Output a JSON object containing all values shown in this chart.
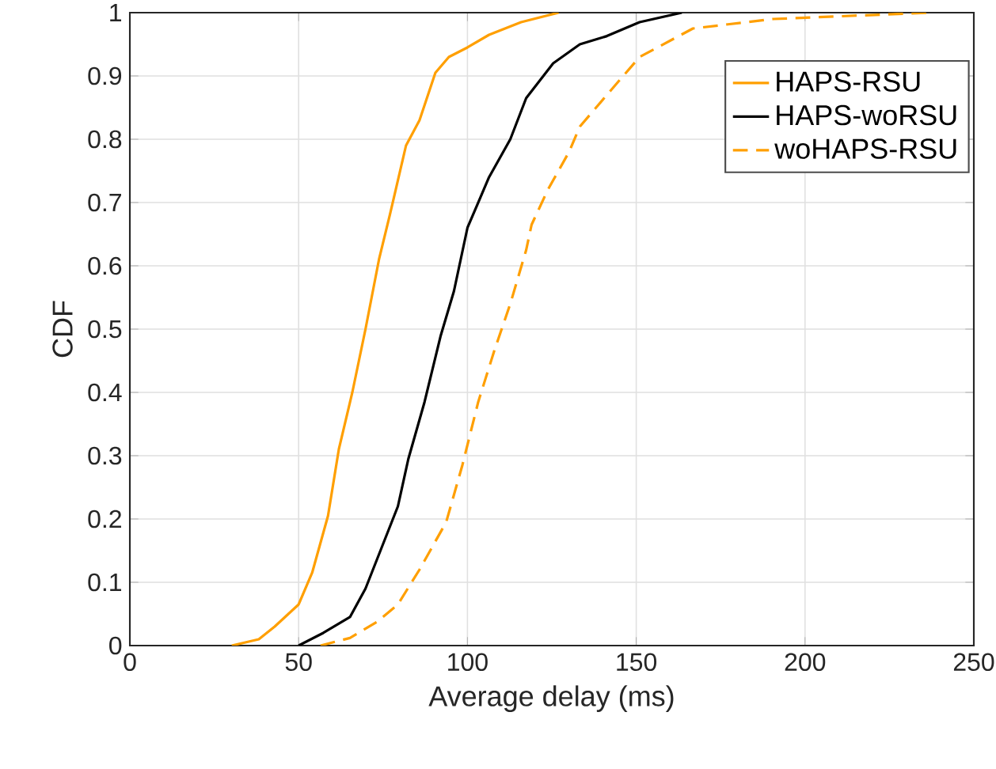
{
  "chart_data": {
    "type": "line",
    "xlabel": "Average delay (ms)",
    "ylabel": "CDF",
    "xlim": [
      0,
      250
    ],
    "ylim": [
      0,
      1
    ],
    "xticks": [
      0,
      50,
      100,
      150,
      200,
      250
    ],
    "yticks": [
      0,
      0.1,
      0.2,
      0.3,
      0.4,
      0.5,
      0.6,
      0.7,
      0.8,
      0.9,
      1
    ],
    "grid": true,
    "legend": "top right",
    "series": [
      {
        "name": "HAPS-RSU",
        "color": "#ff9f00",
        "line_style": "solid",
        "x": [
          30.2,
          38.2,
          42.9,
          50,
          54,
          58.7,
          61.9,
          65.9,
          69.8,
          73.8,
          77,
          81.8,
          85.8,
          90.5,
          94.5,
          100,
          106.4,
          115.9,
          127
        ],
        "values": [
          0,
          0.01,
          0.03,
          0.065,
          0.115,
          0.205,
          0.31,
          0.4,
          0.5,
          0.61,
          0.68,
          0.79,
          0.83,
          0.905,
          0.93,
          0.945,
          0.965,
          0.985,
          1
        ]
      },
      {
        "name": "HAPS-woRSU",
        "color": "#000000",
        "line_style": "solid",
        "x": [
          50,
          57.3,
          65.2,
          69.8,
          74.6,
          79.4,
          82.5,
          87.3,
          92.1,
          96,
          100,
          106.4,
          112.7,
          117.4,
          125.4,
          133.3,
          141.3,
          151,
          163.5
        ],
        "values": [
          0,
          0.02,
          0.045,
          0.09,
          0.155,
          0.22,
          0.295,
          0.385,
          0.49,
          0.56,
          0.66,
          0.74,
          0.8,
          0.865,
          0.92,
          0.95,
          0.963,
          0.985,
          1
        ]
      },
      {
        "name": "woHAPS-RSU",
        "color": "#ff9f00",
        "line_style": "dashed",
        "x": [
          56.5,
          65.2,
          73.1,
          79.4,
          85.8,
          93.7,
          98.5,
          103.2,
          107.9,
          112.7,
          117.4,
          119,
          123.8,
          130.1,
          133.3,
          141.3,
          151,
          166.8,
          190.6,
          236.8
        ],
        "values": [
          0,
          0.012,
          0.037,
          0.065,
          0.12,
          0.195,
          0.285,
          0.385,
          0.465,
          0.54,
          0.625,
          0.665,
          0.72,
          0.78,
          0.82,
          0.87,
          0.93,
          0.975,
          0.99,
          1
        ]
      }
    ]
  }
}
